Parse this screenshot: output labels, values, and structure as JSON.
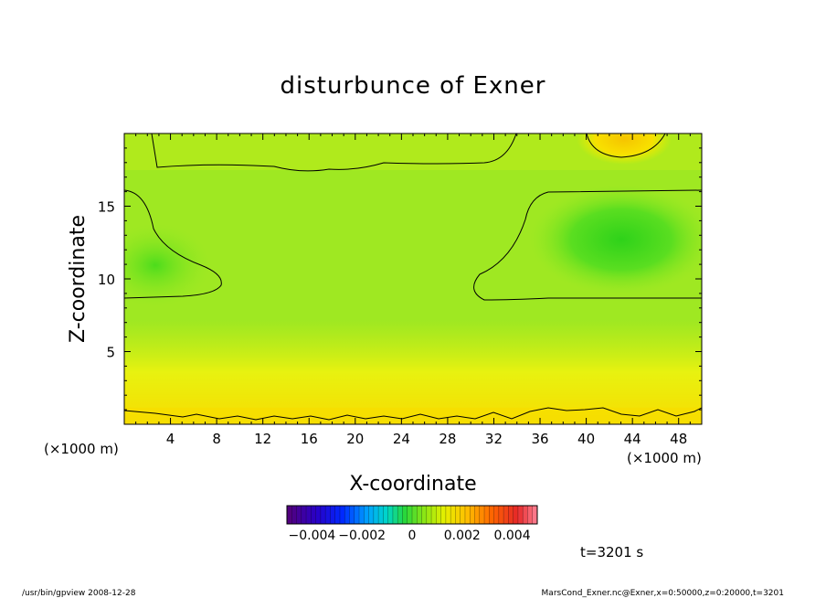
{
  "chart_data": {
    "type": "heatmap",
    "title": "disturbunce of Exner",
    "xlabel": "X-coordinate",
    "ylabel": "Z-coordinate",
    "x_unit_label": "(×1000 m)",
    "x_unit_label_left": "(×1000 m)",
    "xlim": [
      0,
      50
    ],
    "ylim": [
      0,
      20
    ],
    "x_ticks": [
      4,
      8,
      12,
      16,
      20,
      24,
      28,
      32,
      36,
      40,
      44,
      48
    ],
    "y_ticks": [
      5,
      10,
      15
    ],
    "colorbar": {
      "range": [
        -0.005,
        0.005
      ],
      "tick_values": [
        -0.004,
        -0.002,
        0,
        0.002,
        0.004
      ],
      "tick_labels": [
        "−0.004",
        "−0.002",
        "0",
        "0.002",
        "0.004"
      ]
    },
    "time_label": "t=3201 s",
    "contour_level_approx": 0.001
  },
  "footer": {
    "left": "/usr/bin/gpview   2008-12-28",
    "right": "MarsCond_Exner.nc@Exner,x=0:50000,z=0:20000,t=3201"
  }
}
